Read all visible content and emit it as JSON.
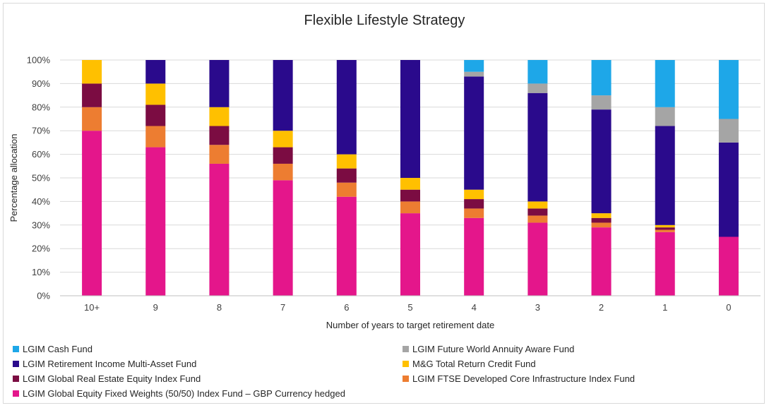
{
  "chart_data": {
    "type": "bar",
    "stacked": true,
    "title": "Flexible Lifestyle Strategy",
    "xlabel": "Number of years to target retirement date",
    "ylabel": "Percentage allocation",
    "ylim": [
      0,
      100
    ],
    "yticks": [
      "0%",
      "10%",
      "20%",
      "30%",
      "40%",
      "50%",
      "60%",
      "70%",
      "80%",
      "90%",
      "100%"
    ],
    "categories": [
      "10+",
      "9",
      "8",
      "7",
      "6",
      "5",
      "4",
      "3",
      "2",
      "1",
      "0"
    ],
    "grid": true,
    "legend_position": "bottom",
    "series": [
      {
        "name": "LGIM Global Equity Fixed Weights (50/50) Index Fund – GBP Currency hedged",
        "color": "#e4168b",
        "values": [
          70,
          63,
          56,
          49,
          42,
          35,
          33,
          31,
          29,
          27,
          25
        ]
      },
      {
        "name": "LGIM FTSE Developed Core Infrastructure Index Fund",
        "color": "#ed7d31",
        "values": [
          10,
          9,
          8,
          7,
          6,
          5,
          4,
          3,
          2,
          1,
          0
        ]
      },
      {
        "name": "LGIM Global Real Estate Equity Index Fund",
        "color": "#7b0c42",
        "values": [
          10,
          9,
          8,
          7,
          6,
          5,
          4,
          3,
          2,
          1,
          0
        ]
      },
      {
        "name": "M&G Total Return Credit Fund",
        "color": "#ffc000",
        "values": [
          10,
          9,
          8,
          7,
          6,
          5,
          4,
          3,
          2,
          1,
          0
        ]
      },
      {
        "name": "LGIM Retirement Income Multi-Asset Fund",
        "color": "#2a0a8c",
        "values": [
          0,
          10,
          20,
          30,
          40,
          50,
          48,
          46,
          44,
          42,
          40
        ]
      },
      {
        "name": "LGIM Future World Annuity Aware Fund",
        "color": "#a5a5a5",
        "values": [
          0,
          0,
          0,
          0,
          0,
          0,
          2,
          4,
          6,
          8,
          10
        ]
      },
      {
        "name": "LGIM Cash Fund",
        "color": "#1ea7e8",
        "values": [
          0,
          0,
          0,
          0,
          0,
          0,
          5,
          10,
          15,
          20,
          25
        ]
      }
    ],
    "legend_order": [
      6,
      5,
      4,
      3,
      2,
      1,
      0
    ]
  }
}
